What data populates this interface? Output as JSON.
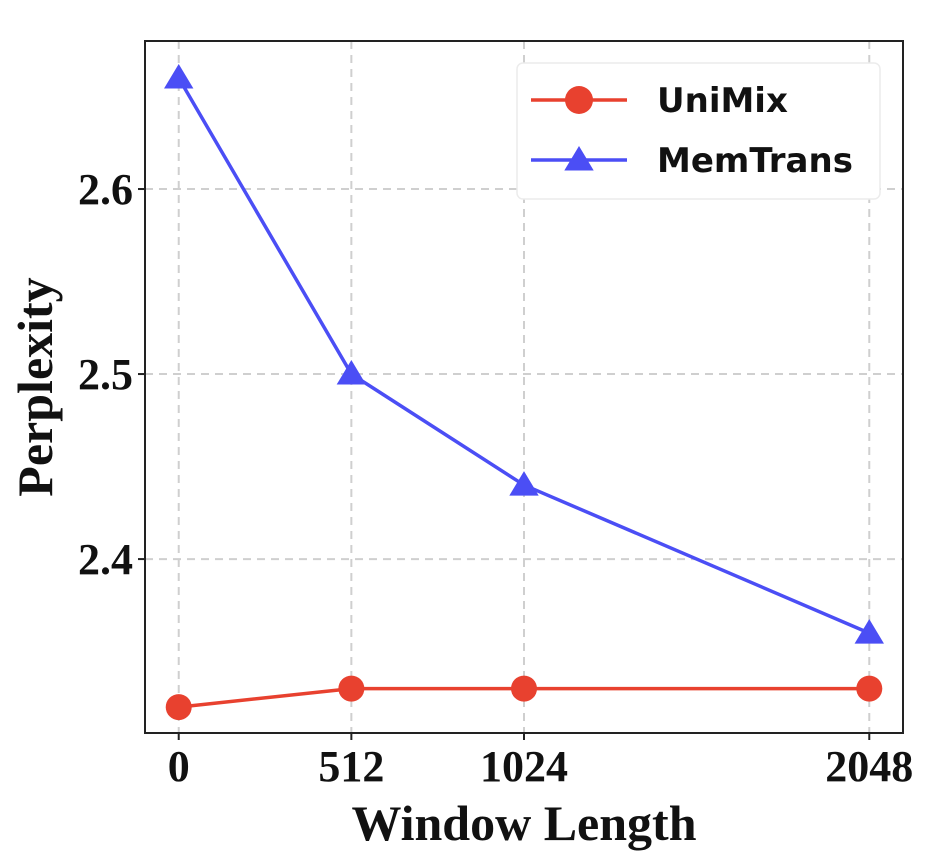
{
  "chart_data": {
    "type": "line",
    "x": [
      0,
      512,
      1024,
      2048
    ],
    "xticks": [
      "0",
      "512",
      "1024",
      "2048"
    ],
    "yticks": [
      "2.4",
      "2.5",
      "2.6"
    ],
    "xlabel": "Window Length",
    "ylabel": "Perplexity",
    "xlim": [
      -100,
      2148
    ],
    "ylim": [
      2.306,
      2.68
    ],
    "grid": true,
    "legend_position": "top-right",
    "series": [
      {
        "name": "UniMix",
        "values": [
          2.32,
          2.33,
          2.33,
          2.33
        ],
        "color": "#e8412f",
        "marker": "circle"
      },
      {
        "name": "MemTrans",
        "values": [
          2.66,
          2.5,
          2.44,
          2.36
        ],
        "color": "#4b4ef5",
        "marker": "triangle"
      }
    ]
  }
}
